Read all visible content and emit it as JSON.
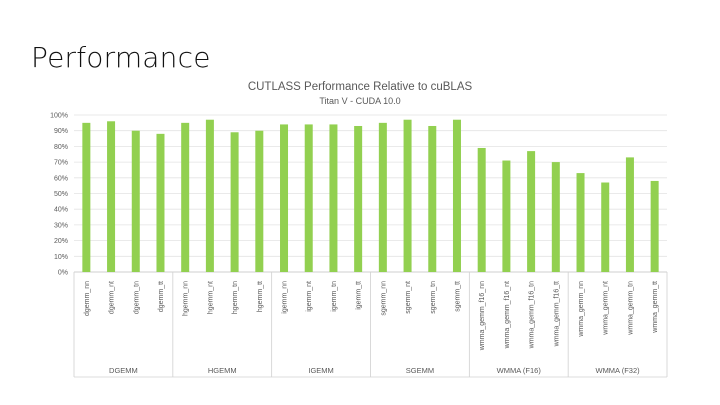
{
  "slide": {
    "title": "Performance"
  },
  "chart_data": {
    "type": "bar",
    "title": "CUTLASS Performance Relative to cuBLAS",
    "subtitle": "Titan V - CUDA 10.0",
    "xlabel": "",
    "ylabel": "",
    "ylim": [
      0,
      100
    ],
    "y_ticks": [
      "0%",
      "10%",
      "20%",
      "30%",
      "40%",
      "50%",
      "60%",
      "70%",
      "80%",
      "90%",
      "100%"
    ],
    "grid": true,
    "legend": "none",
    "bar_color": "#92D050",
    "categories": [
      "dgemm_nn",
      "dgemm_nt",
      "dgemm_tn",
      "dgemm_tt",
      "hgemm_nn",
      "hgemm_nt",
      "hgemm_tn",
      "hgemm_tt",
      "igemm_nn",
      "igemm_nt",
      "igemm_tn",
      "igemm_tt",
      "sgemm_nn",
      "sgemm_nt",
      "sgemm_tn",
      "sgemm_tt",
      "wmma_gemm_f16_nn",
      "wmma_gemm_f16_nt",
      "wmma_gemm_f16_tn",
      "wmma_gemm_f16_tt",
      "wmma_gemm_nn",
      "wmma_gemm_nt",
      "wmma_gemm_tn",
      "wmma_gemm_tt"
    ],
    "values": [
      95,
      96,
      90,
      88,
      95,
      97,
      89,
      90,
      94,
      94,
      94,
      93,
      95,
      97,
      93,
      97,
      79,
      71,
      77,
      70,
      63,
      57,
      73,
      58
    ],
    "groups": [
      {
        "label": "DGEMM",
        "count": 4
      },
      {
        "label": "HGEMM",
        "count": 4
      },
      {
        "label": "IGEMM",
        "count": 4
      },
      {
        "label": "SGEMM",
        "count": 4
      },
      {
        "label": "WMMA (F16)",
        "count": 4
      },
      {
        "label": "WMMA (F32)",
        "count": 4
      }
    ]
  }
}
